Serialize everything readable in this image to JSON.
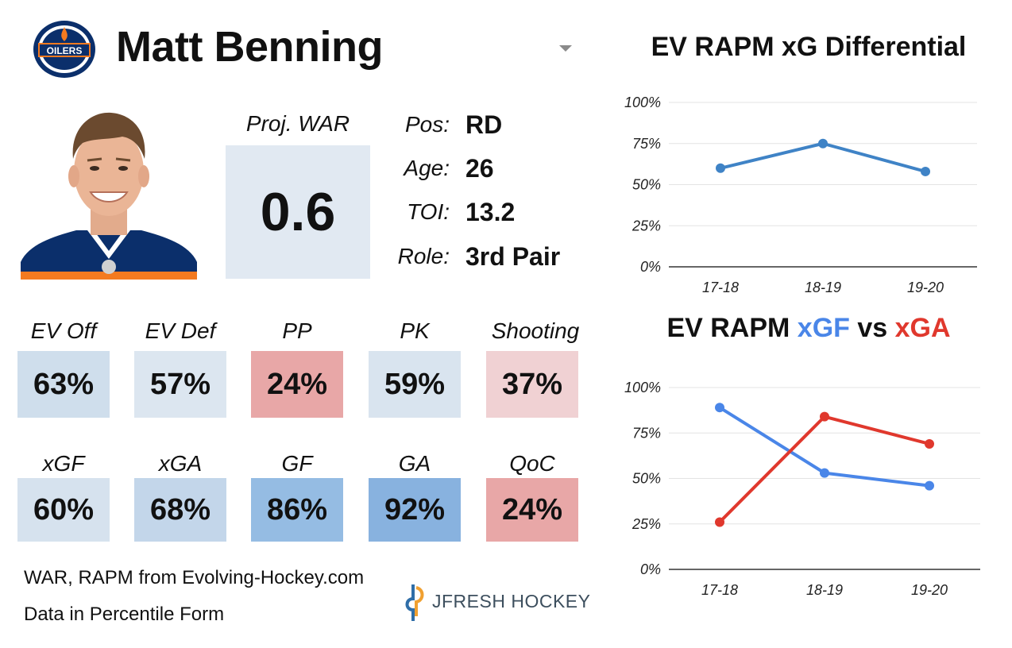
{
  "player": {
    "name": "Matt Benning",
    "team_logo_text": "OILERS"
  },
  "war": {
    "label": "Proj. WAR",
    "value": "0.6"
  },
  "bio": [
    {
      "key": "Pos:",
      "value": "RD"
    },
    {
      "key": "Age:",
      "value": "26"
    },
    {
      "key": "TOI:",
      "value": "13.2"
    },
    {
      "key": "Role:",
      "value": "3rd Pair"
    }
  ],
  "stats_row1": [
    {
      "label": "EV Off",
      "value": "63%",
      "color": "#cfdeec"
    },
    {
      "label": "EV Def",
      "value": "57%",
      "color": "#dce6f0"
    },
    {
      "label": "PP",
      "value": "24%",
      "color": "#e8a7a7"
    },
    {
      "label": "PK",
      "value": "59%",
      "color": "#d9e4ef"
    },
    {
      "label": "Shooting",
      "value": "37%",
      "color": "#f0d1d3"
    }
  ],
  "stats_row2": [
    {
      "label": "xGF",
      "value": "60%",
      "color": "#d6e2ee"
    },
    {
      "label": "xGA",
      "value": "68%",
      "color": "#c3d6ea"
    },
    {
      "label": "GF",
      "value": "86%",
      "color": "#95bce3"
    },
    {
      "label": "GA",
      "value": "92%",
      "color": "#88b2df"
    },
    {
      "label": "QoC",
      "value": "24%",
      "color": "#e8a7a7"
    }
  ],
  "footer": {
    "line1": "WAR, RAPM from  Evolving-Hockey.com",
    "line2": "Data in Percentile Form"
  },
  "brand": {
    "name": "JFRESH HOCKEY"
  },
  "chart_data": [
    {
      "type": "line",
      "title": "EV RAPM xG Differential",
      "categories": [
        "17-18",
        "18-19",
        "19-20"
      ],
      "series": [
        {
          "values": [
            60,
            75,
            58
          ],
          "color": "#3f83c6"
        }
      ],
      "ylim": [
        0,
        100
      ],
      "yticks": [
        "0%",
        "25%",
        "50%",
        "75%",
        "100%"
      ],
      "grid": true
    },
    {
      "type": "line",
      "title_parts": [
        {
          "text": "EV RAPM ",
          "color": "#111111"
        },
        {
          "text": "xGF",
          "color": "#4a86e8"
        },
        {
          "text": " vs ",
          "color": "#111111"
        },
        {
          "text": "xGA",
          "color": "#e0382d"
        }
      ],
      "categories": [
        "17-18",
        "18-19",
        "19-20"
      ],
      "series": [
        {
          "name": "xGF",
          "values": [
            89,
            53,
            46
          ],
          "color": "#4a86e8"
        },
        {
          "name": "xGA",
          "values": [
            26,
            84,
            69
          ],
          "color": "#e0382d"
        }
      ],
      "ylim": [
        0,
        100
      ],
      "yticks": [
        "0%",
        "25%",
        "50%",
        "75%",
        "100%"
      ],
      "grid": true
    }
  ]
}
